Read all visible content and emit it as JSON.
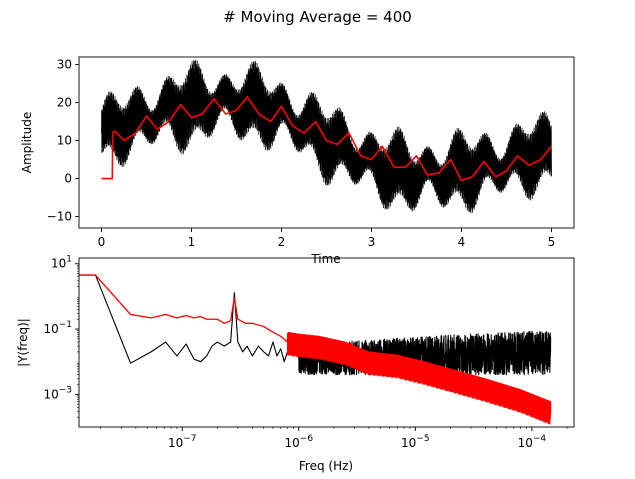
{
  "figure": {
    "suptitle": "# Moving Average = 400"
  },
  "chart_data": [
    {
      "type": "line",
      "xlabel": "Time",
      "ylabel": "Amplitude",
      "xlim": [
        -0.25,
        5.25
      ],
      "ylim": [
        -13,
        32
      ],
      "xticks": [
        0,
        1,
        2,
        3,
        4,
        5
      ],
      "xtick_labels": [
        "0",
        "1",
        "2",
        "3",
        "4",
        "5"
      ],
      "yticks": [
        -10,
        0,
        10,
        20,
        30
      ],
      "ytick_labels": [
        "−10",
        "0",
        "10",
        "20",
        "30"
      ],
      "series": [
        {
          "color": "#000000",
          "style": "dense oscillating raw signal",
          "envelope_x": [
            0.0,
            0.25,
            0.5,
            0.75,
            1.0,
            1.25,
            1.5,
            1.75,
            2.0,
            2.25,
            2.5,
            2.75,
            3.0,
            3.25,
            3.5,
            3.75,
            4.0,
            4.25,
            4.5,
            4.75,
            5.0
          ],
          "envelope_mid": [
            12,
            14,
            16,
            18,
            19,
            20,
            20,
            19,
            17,
            14,
            10,
            7,
            4,
            2,
            1,
            1,
            2,
            3,
            4,
            6,
            7
          ],
          "envelope_halfwidth": [
            8,
            8,
            9,
            9,
            10,
            9,
            9,
            9,
            9,
            9,
            9,
            9,
            9,
            9,
            9,
            9,
            9,
            9,
            9,
            9,
            9
          ]
        },
        {
          "color": "#ff0000",
          "style": "moving average",
          "x": [
            0.0,
            0.12,
            0.125,
            0.15,
            0.25,
            0.38,
            0.5,
            0.62,
            0.75,
            0.88,
            1.0,
            1.12,
            1.25,
            1.38,
            1.5,
            1.62,
            1.75,
            1.88,
            2.0,
            2.12,
            2.25,
            2.38,
            2.5,
            2.62,
            2.75,
            2.88,
            3.0,
            3.12,
            3.25,
            3.38,
            3.5,
            3.62,
            3.75,
            3.88,
            4.0,
            4.12,
            4.25,
            4.38,
            4.5,
            4.62,
            4.75,
            4.88,
            5.0
          ],
          "y": [
            0,
            0,
            12,
            12.5,
            10,
            12,
            16.5,
            13,
            15,
            19.5,
            16,
            17,
            21,
            17,
            18,
            21.5,
            17,
            15,
            19,
            14,
            12,
            15,
            10,
            9,
            12,
            6,
            5,
            8.5,
            3,
            3,
            6,
            1,
            1.5,
            5,
            -0.5,
            0.5,
            4.5,
            0.5,
            2,
            6,
            3.5,
            5,
            8.5
          ]
        }
      ]
    },
    {
      "type": "line",
      "xscale": "log",
      "yscale": "log",
      "xlabel": "Freq (Hz)",
      "ylabel": "|Y(freq)|",
      "xlim": [
        1.3e-08,
        0.00023
      ],
      "ylim": [
        0.0001,
        15
      ],
      "xtick_labels": [
        "10^-7",
        "10^-6",
        "10^-5",
        "10^-4"
      ],
      "ytick_labels": [
        "10^1",
        "10^-1",
        "10^-3"
      ],
      "series": [
        {
          "color": "#000000",
          "style": "spectrum of raw signal",
          "x": [
            1.3e-08,
            1.8e-08,
            3.6e-08,
            5.4e-08,
            7.2e-08,
            9e-08,
            1.08e-07,
            1.26e-07,
            1.44e-07,
            1.62e-07,
            1.8e-07,
            2e-07,
            2.3e-07,
            2.6e-07,
            2.8e-07,
            3e-07,
            3.3e-07,
            3.6e-07,
            4e-07,
            4.5e-07,
            5e-07,
            5.5e-07,
            6e-07,
            6.5e-07,
            7e-07,
            7.5e-07,
            8e-07,
            1e-06,
            1.4e-06,
            2e-06,
            3e-06,
            5e-06,
            8e-06,
            1.2e-05,
            1.8e-05,
            2e-05,
            2.5e-05,
            3.5e-05,
            5e-05,
            8e-05,
            0.00012,
            0.000145
          ],
          "y": [
            4.5,
            4.5,
            0.009,
            0.02,
            0.04,
            0.015,
            0.035,
            0.012,
            0.01,
            0.015,
            0.03,
            0.04,
            0.03,
            0.04,
            1.3,
            0.04,
            0.02,
            0.03,
            0.015,
            0.03,
            0.02,
            0.015,
            0.04,
            0.015,
            0.025,
            0.01,
            0.02,
            0.015,
            0.035,
            0.025,
            0.05,
            0.03,
            0.06,
            0.04,
            0.05,
            0.0015,
            0.06,
            0.05,
            0.07,
            0.06,
            0.08,
            0.07
          ],
          "noise_floor_range": [
            0.003,
            0.09
          ]
        },
        {
          "color": "#ff0000",
          "style": "spectrum of moving average",
          "x": [
            1.3e-08,
            1.8e-08,
            3.6e-08,
            5.4e-08,
            7.2e-08,
            9e-08,
            1.08e-07,
            1.26e-07,
            1.44e-07,
            1.62e-07,
            1.8e-07,
            2e-07,
            2.3e-07,
            2.6e-07,
            2.8e-07,
            3e-07,
            3.5e-07,
            4e-07,
            5e-07,
            6e-07,
            7e-07,
            8e-07,
            1e-06,
            1.5e-06,
            2.5e-06,
            4e-06,
            7e-06,
            1.2e-05,
            2e-05,
            4e-05,
            8e-05,
            0.000145
          ],
          "y": [
            4.5,
            4.5,
            0.28,
            0.22,
            0.28,
            0.22,
            0.26,
            0.22,
            0.24,
            0.2,
            0.2,
            0.2,
            0.15,
            0.18,
            0.9,
            0.2,
            0.15,
            0.15,
            0.12,
            0.08,
            0.06,
            0.04,
            0.035,
            0.03,
            0.02,
            0.01,
            0.008,
            0.005,
            0.003,
            0.0015,
            0.0007,
            0.0003
          ],
          "oscillation_range_factor": [
            0.4,
            2.0
          ]
        }
      ]
    }
  ]
}
